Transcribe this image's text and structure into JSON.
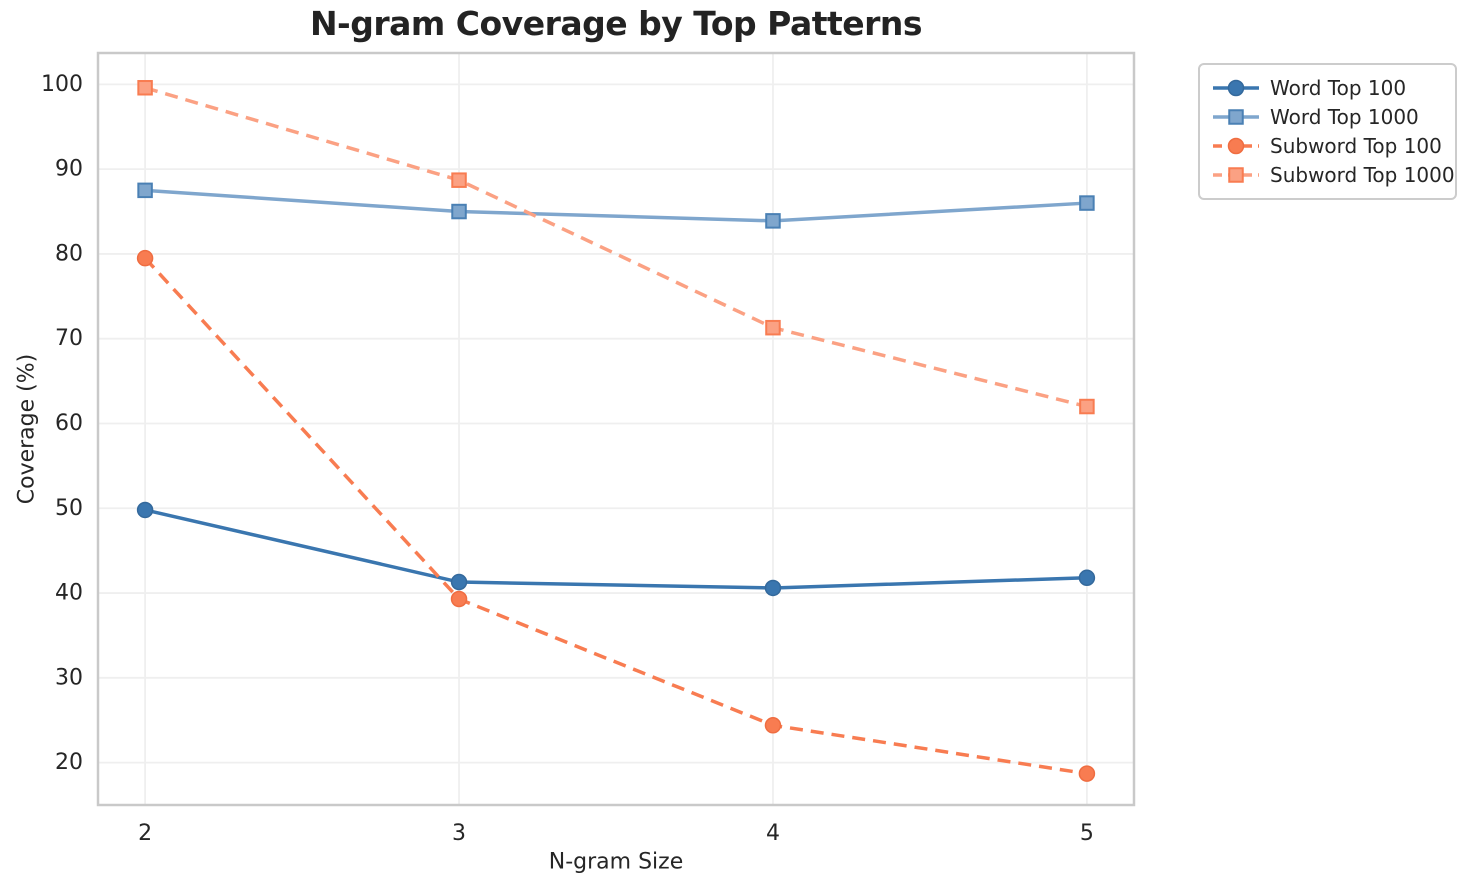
{
  "chart_data": {
    "type": "line",
    "title": "N-gram Coverage by Top Patterns",
    "xlabel": "N-gram Size",
    "ylabel": "Coverage (%)",
    "x": [
      2,
      3,
      4,
      5
    ],
    "x_tick_labels": [
      "2",
      "3",
      "4",
      "5"
    ],
    "y_ticks": [
      20,
      30,
      40,
      50,
      60,
      70,
      80,
      90,
      100
    ],
    "xlim": [
      1.85,
      5.15
    ],
    "ylim": [
      15.0,
      103.7
    ],
    "grid": true,
    "legend_position": "outside-top-right",
    "colors": {
      "grid": "#efefef",
      "spine": "#c9c9c9",
      "text": "#262626",
      "background": "#ffffff"
    },
    "series": [
      {
        "name": "Word Top 100",
        "color": "#3a76af",
        "edge_color": "#34699c",
        "line_style": "solid",
        "marker": "circle",
        "values": [
          49.8,
          41.3,
          40.6,
          41.8
        ]
      },
      {
        "name": "Word Top 1000",
        "color": "#7fa6cd",
        "edge_color": "#4a80b4",
        "line_style": "solid",
        "marker": "square",
        "values": [
          87.5,
          85.0,
          83.9,
          86.0
        ]
      },
      {
        "name": "Subword Top 100",
        "color": "#f87c51",
        "edge_color": "#ef6d41",
        "line_style": "dashed",
        "marker": "circle",
        "values": [
          79.5,
          39.3,
          24.4,
          18.7
        ]
      },
      {
        "name": "Subword Top 1000",
        "color": "#fba183",
        "edge_color": "#f87c51",
        "line_style": "dashed",
        "marker": "square",
        "values": [
          99.6,
          88.7,
          71.3,
          62.0
        ]
      }
    ]
  }
}
